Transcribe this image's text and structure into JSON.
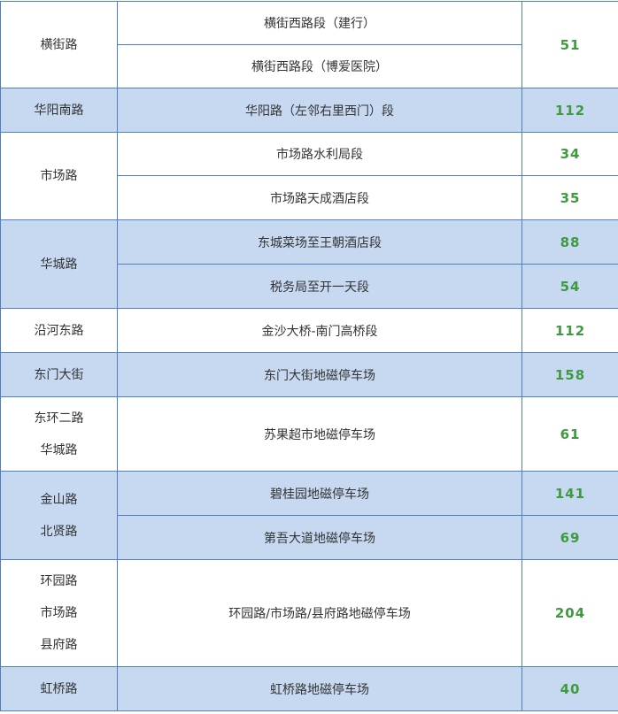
{
  "colors": {
    "highlight_row": "#c6d9f1",
    "border": "#4f7fbf",
    "count_text": "#3f9a3f"
  },
  "groups": [
    {
      "roads": [
        "横街路"
      ],
      "segments": [
        "横街西路段（建行）",
        "横街西路段（博爱医院）"
      ],
      "counts": [
        "51"
      ],
      "shared_count": true
    },
    {
      "roads": [
        "华阳南路"
      ],
      "segments": [
        "华阳路（左邻右里西门）段"
      ],
      "counts": [
        "112"
      ]
    },
    {
      "roads": [
        "市场路"
      ],
      "segments": [
        "市场路水利局段",
        "市场路天成酒店段"
      ],
      "counts": [
        "34",
        "35"
      ]
    },
    {
      "roads": [
        "华城路"
      ],
      "segments": [
        "东城菜场至王朝酒店段",
        "税务局至开一天段"
      ],
      "counts": [
        "88",
        "54"
      ]
    },
    {
      "roads": [
        "沿河东路"
      ],
      "segments": [
        "金沙大桥-南门高桥段"
      ],
      "counts": [
        "112"
      ]
    },
    {
      "roads": [
        "东门大街"
      ],
      "segments": [
        "东门大街地磁停车场"
      ],
      "counts": [
        "158"
      ]
    },
    {
      "roads": [
        "东环二路",
        "华城路"
      ],
      "segments": [
        "苏果超市地磁停车场"
      ],
      "counts": [
        "61"
      ]
    },
    {
      "roads": [
        "金山路",
        "北贤路"
      ],
      "segments": [
        "碧桂园地磁停车场",
        "第吾大道地磁停车场"
      ],
      "counts": [
        "141",
        "69"
      ]
    },
    {
      "roads": [
        "环园路",
        "市场路",
        "县府路"
      ],
      "segments": [
        "环园路/市场路/县府路地磁停车场"
      ],
      "counts": [
        "204"
      ]
    },
    {
      "roads": [
        "虹桥路"
      ],
      "segments": [
        "虹桥路地磁停车场"
      ],
      "counts": [
        "40"
      ]
    }
  ]
}
